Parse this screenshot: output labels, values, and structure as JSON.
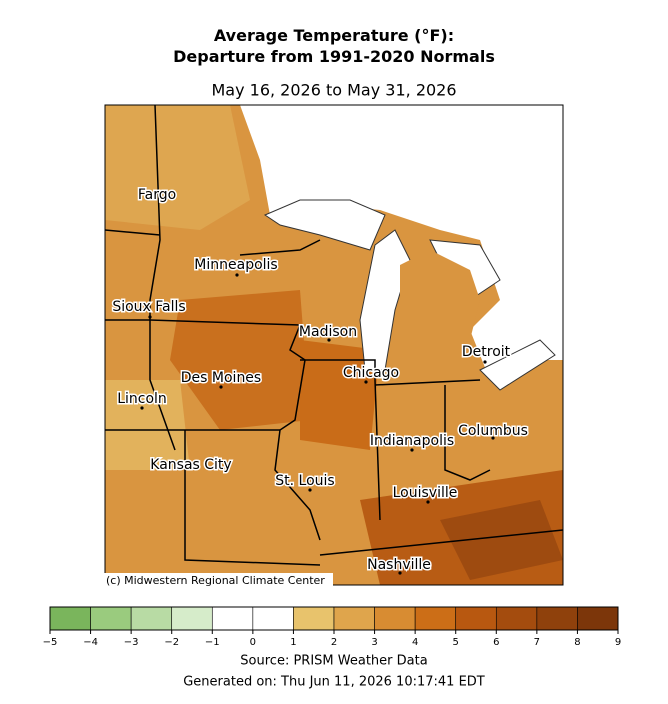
{
  "title": "Average Temperature (°F):\nDeparture from 1991-2020 Normals",
  "subtitle": "May 16, 2026 to May 31, 2026",
  "cities": [
    "Fargo",
    "Minneapolis",
    "Sioux Falls",
    "Madison",
    "Detroit",
    "Chicago",
    "Des Moines",
    "Lincoln",
    "Columbus",
    "Indianapolis",
    "Kansas City",
    "St. Louis",
    "Louisville",
    "Nashville"
  ],
  "credit": "(c) Midwestern Regional Climate Center",
  "colorbar": {
    "ticks": [
      {
        "value": -5,
        "label": "−5"
      },
      {
        "value": -4,
        "label": "−4"
      },
      {
        "value": -3,
        "label": "−3"
      },
      {
        "value": -2,
        "label": "−2"
      },
      {
        "value": -1,
        "label": "−1"
      },
      0,
      1,
      2,
      3,
      4,
      5,
      6,
      7,
      8,
      9
    ],
    "colors": [
      "#7ab55c",
      "#9acb7e",
      "#b8dba4",
      "#d6ecca",
      "#ffffff",
      "#ffffff",
      "#e8c36c",
      "#dfa54c",
      "#d88c32",
      "#cc6e17",
      "#b85810",
      "#a44c0e",
      "#8f410c",
      "#7c360a"
    ]
  },
  "source": "Source: PRISM Weather Data",
  "generated": "Generated on: Thu Jun 11, 2026 10:17:41 EDT"
}
